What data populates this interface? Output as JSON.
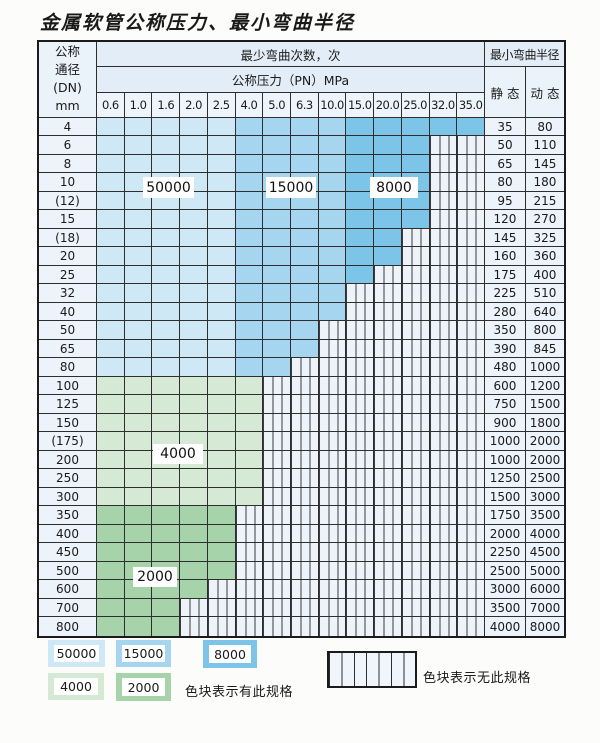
{
  "title": "金属软管公称压力、最小弯曲半径",
  "table": {
    "header": {
      "dn_lines": [
        "公称",
        "通径",
        "(DN)",
        "mm"
      ],
      "cycles_label": "最少弯曲次数，次",
      "pressure_label": "公称压力（PN）MPa",
      "radius_label": "最小弯曲半径",
      "static_label": "静 态",
      "dynamic_label": "动 态"
    },
    "columns": [
      "0.6",
      "1.0",
      "1.6",
      "2.0",
      "2.5",
      "4.0",
      "5.0",
      "6.3",
      "10.0",
      "15.0",
      "20.0",
      "25.0",
      "32.0",
      "35.0"
    ],
    "cycle_bands": {
      "50000": [
        "0.6",
        "1.0",
        "1.6",
        "2.0",
        "2.5"
      ],
      "15000": [
        "4.0",
        "5.0",
        "6.3",
        "10.0"
      ],
      "8000": [
        "15.0",
        "20.0",
        "25.0",
        "32.0",
        "35.0"
      ]
    },
    "rows": [
      {
        "dn": "4",
        "static": "35",
        "dynamic": "80",
        "avail": 14,
        "band": "blue"
      },
      {
        "dn": "6",
        "static": "50",
        "dynamic": "110",
        "avail": 12,
        "band": "blue"
      },
      {
        "dn": "8",
        "static": "65",
        "dynamic": "145",
        "avail": 12,
        "band": "blue"
      },
      {
        "dn": "10",
        "static": "80",
        "dynamic": "180",
        "avail": 12,
        "band": "blue"
      },
      {
        "dn": "(12)",
        "static": "95",
        "dynamic": "215",
        "avail": 12,
        "band": "blue"
      },
      {
        "dn": "15",
        "static": "120",
        "dynamic": "270",
        "avail": 12,
        "band": "blue"
      },
      {
        "dn": "(18)",
        "static": "145",
        "dynamic": "325",
        "avail": 11,
        "band": "blue"
      },
      {
        "dn": "20",
        "static": "160",
        "dynamic": "360",
        "avail": 11,
        "band": "blue"
      },
      {
        "dn": "25",
        "static": "175",
        "dynamic": "400",
        "avail": 10,
        "band": "blue"
      },
      {
        "dn": "32",
        "static": "225",
        "dynamic": "510",
        "avail": 9,
        "band": "blue"
      },
      {
        "dn": "40",
        "static": "280",
        "dynamic": "640",
        "avail": 9,
        "band": "blue"
      },
      {
        "dn": "50",
        "static": "350",
        "dynamic": "800",
        "avail": 8,
        "band": "blue"
      },
      {
        "dn": "65",
        "static": "390",
        "dynamic": "845",
        "avail": 8,
        "band": "blue"
      },
      {
        "dn": "80",
        "static": "480",
        "dynamic": "1000",
        "avail": 7,
        "band": "blue"
      },
      {
        "dn": "100",
        "static": "600",
        "dynamic": "1200",
        "avail": 6,
        "band": "green4000"
      },
      {
        "dn": "125",
        "static": "750",
        "dynamic": "1500",
        "avail": 6,
        "band": "green4000"
      },
      {
        "dn": "150",
        "static": "900",
        "dynamic": "1800",
        "avail": 6,
        "band": "green4000"
      },
      {
        "dn": "(175)",
        "static": "1000",
        "dynamic": "2000",
        "avail": 6,
        "band": "green4000"
      },
      {
        "dn": "200",
        "static": "1000",
        "dynamic": "2000",
        "avail": 6,
        "band": "green4000"
      },
      {
        "dn": "250",
        "static": "1250",
        "dynamic": "2500",
        "avail": 6,
        "band": "green4000"
      },
      {
        "dn": "300",
        "static": "1500",
        "dynamic": "3000",
        "avail": 6,
        "band": "green4000"
      },
      {
        "dn": "350",
        "static": "1750",
        "dynamic": "3500",
        "avail": 5,
        "band": "green2000"
      },
      {
        "dn": "400",
        "static": "2000",
        "dynamic": "4000",
        "avail": 5,
        "band": "green2000"
      },
      {
        "dn": "450",
        "static": "2250",
        "dynamic": "4500",
        "avail": 5,
        "band": "green2000"
      },
      {
        "dn": "500",
        "static": "2500",
        "dynamic": "5000",
        "avail": 5,
        "band": "green2000"
      },
      {
        "dn": "600",
        "static": "3000",
        "dynamic": "6000",
        "avail": 4,
        "band": "green2000"
      },
      {
        "dn": "700",
        "static": "3500",
        "dynamic": "7000",
        "avail": 3,
        "band": "green2000"
      },
      {
        "dn": "800",
        "static": "4000",
        "dynamic": "8000",
        "avail": 3,
        "band": "green2000"
      }
    ]
  },
  "overlay_labels": {
    "l50000": "50000",
    "l15000": "15000",
    "l8000": "8000",
    "l4000": "4000",
    "l2000": "2000"
  },
  "legend": {
    "items": [
      {
        "value": "50000",
        "color_key": "blue_50000"
      },
      {
        "value": "15000",
        "color_key": "blue_15000"
      },
      {
        "value": "8000",
        "color_key": "blue_8000"
      },
      {
        "value": "4000",
        "color_key": "green_4000"
      },
      {
        "value": "2000",
        "color_key": "green_2000"
      }
    ],
    "has_spec_text": "色块表示有此规格",
    "no_spec_text": "色块表示无此规格"
  },
  "colors": {
    "blue_50000": "#cfe8f6",
    "blue_15000": "#a6d5ef",
    "blue_8000": "#7cc4e8",
    "green_4000": "#d6e9d5",
    "green_2000": "#a6d3aa"
  }
}
